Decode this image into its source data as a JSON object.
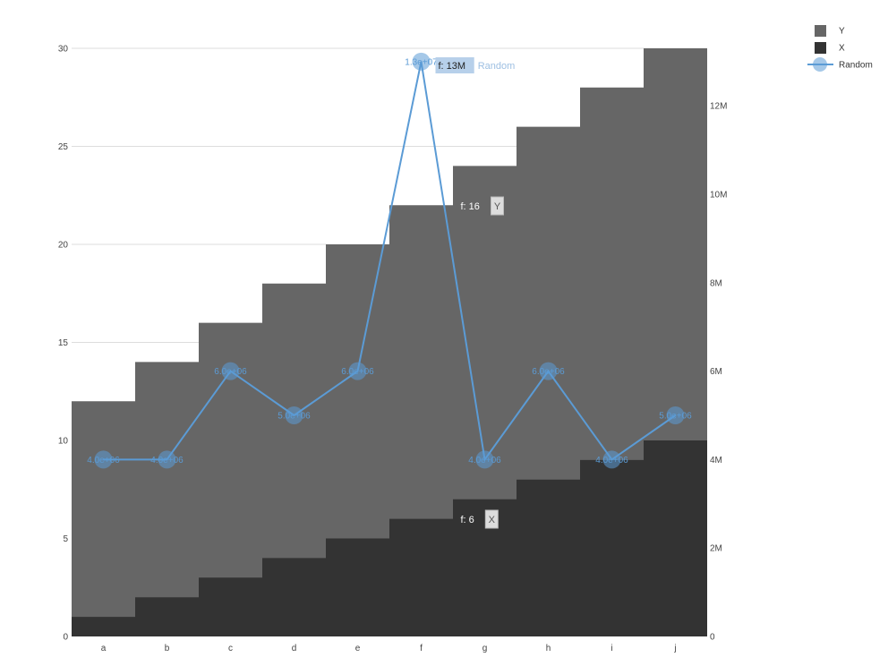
{
  "chart_data": {
    "type": "area",
    "categories": [
      "a",
      "b",
      "c",
      "d",
      "e",
      "f",
      "g",
      "h",
      "i",
      "j"
    ],
    "series": [
      {
        "name": "Y",
        "kind": "step-area",
        "axis": "left",
        "color": "#666666",
        "values": [
          12,
          14,
          16,
          18,
          20,
          22,
          24,
          26,
          28,
          30
        ]
      },
      {
        "name": "X",
        "kind": "step-area",
        "axis": "left",
        "color": "#333333",
        "values": [
          1,
          2,
          3,
          4,
          5,
          6,
          7,
          8,
          9,
          10
        ]
      },
      {
        "name": "Random",
        "kind": "line",
        "axis": "right",
        "color": "#5b9bd5",
        "values": [
          4000000,
          4000000,
          6000000,
          5000000,
          6000000,
          13000000,
          4000000,
          6000000,
          4000000,
          5000000
        ],
        "labels": [
          "4.0e+06",
          "4.0e+06",
          "6.0e+06",
          "5.0e+06",
          "6.0e+06",
          "1.3e+07",
          "4.0e+06",
          "6.0e+06",
          "4.0e+06",
          "5.0e+06"
        ]
      }
    ],
    "y_left": {
      "ylim": [
        0,
        30
      ],
      "ticks": [
        0,
        5,
        10,
        15,
        20,
        25,
        30
      ]
    },
    "y_right": {
      "ylim": [
        0,
        13300000
      ],
      "ticks": [
        0,
        2000000,
        4000000,
        6000000,
        8000000,
        10000000,
        12000000
      ],
      "tick_labels": [
        "0",
        "2M",
        "4M",
        "6M",
        "8M",
        "10M",
        "12M"
      ]
    },
    "grid": true,
    "legend": {
      "placement": "top-right",
      "items": [
        "Y",
        "X",
        "Random"
      ]
    },
    "tooltips": [
      {
        "category": "f",
        "text": "f: 13M",
        "series": "Random"
      },
      {
        "category": "f",
        "text": "f: 16",
        "series": "Y"
      },
      {
        "category": "f",
        "text": "f: 6",
        "series": "X"
      }
    ]
  }
}
